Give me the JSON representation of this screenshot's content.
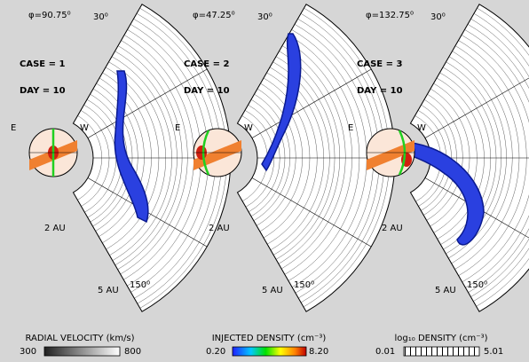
{
  "panels": [
    {
      "phi": "φ=90.75⁰",
      "angle_top": "30⁰",
      "angle_bottom": "150⁰",
      "case": "CASE = 1",
      "day": "DAY = 10",
      "east": "E",
      "west": "W",
      "r_inner": "2 AU",
      "r_outer": "5 AU"
    },
    {
      "phi": "φ=47.25⁰",
      "angle_top": "30⁰",
      "angle_bottom": "150⁰",
      "case": "CASE = 2",
      "day": "DAY = 10",
      "east": "E",
      "west": "W",
      "r_inner": "2 AU",
      "r_outer": "5 AU"
    },
    {
      "phi": "φ=132.75⁰",
      "angle_top": "30⁰",
      "angle_bottom": "150⁰",
      "case": "CASE = 3",
      "day": "DAY = 10",
      "east": "E",
      "west": "W",
      "r_inner": "2 AU",
      "r_outer": "5 AU"
    }
  ],
  "colorbars": [
    {
      "title": "RADIAL VELOCITY (km/s)",
      "min": "300",
      "max": "800"
    },
    {
      "title": "INJECTED DENSITY (cm⁻³)",
      "min": "0.20",
      "max": "8.20"
    },
    {
      "title": "log₁₀ DENSITY (cm⁻³)",
      "min": "0.01",
      "max": "5.01"
    }
  ]
}
